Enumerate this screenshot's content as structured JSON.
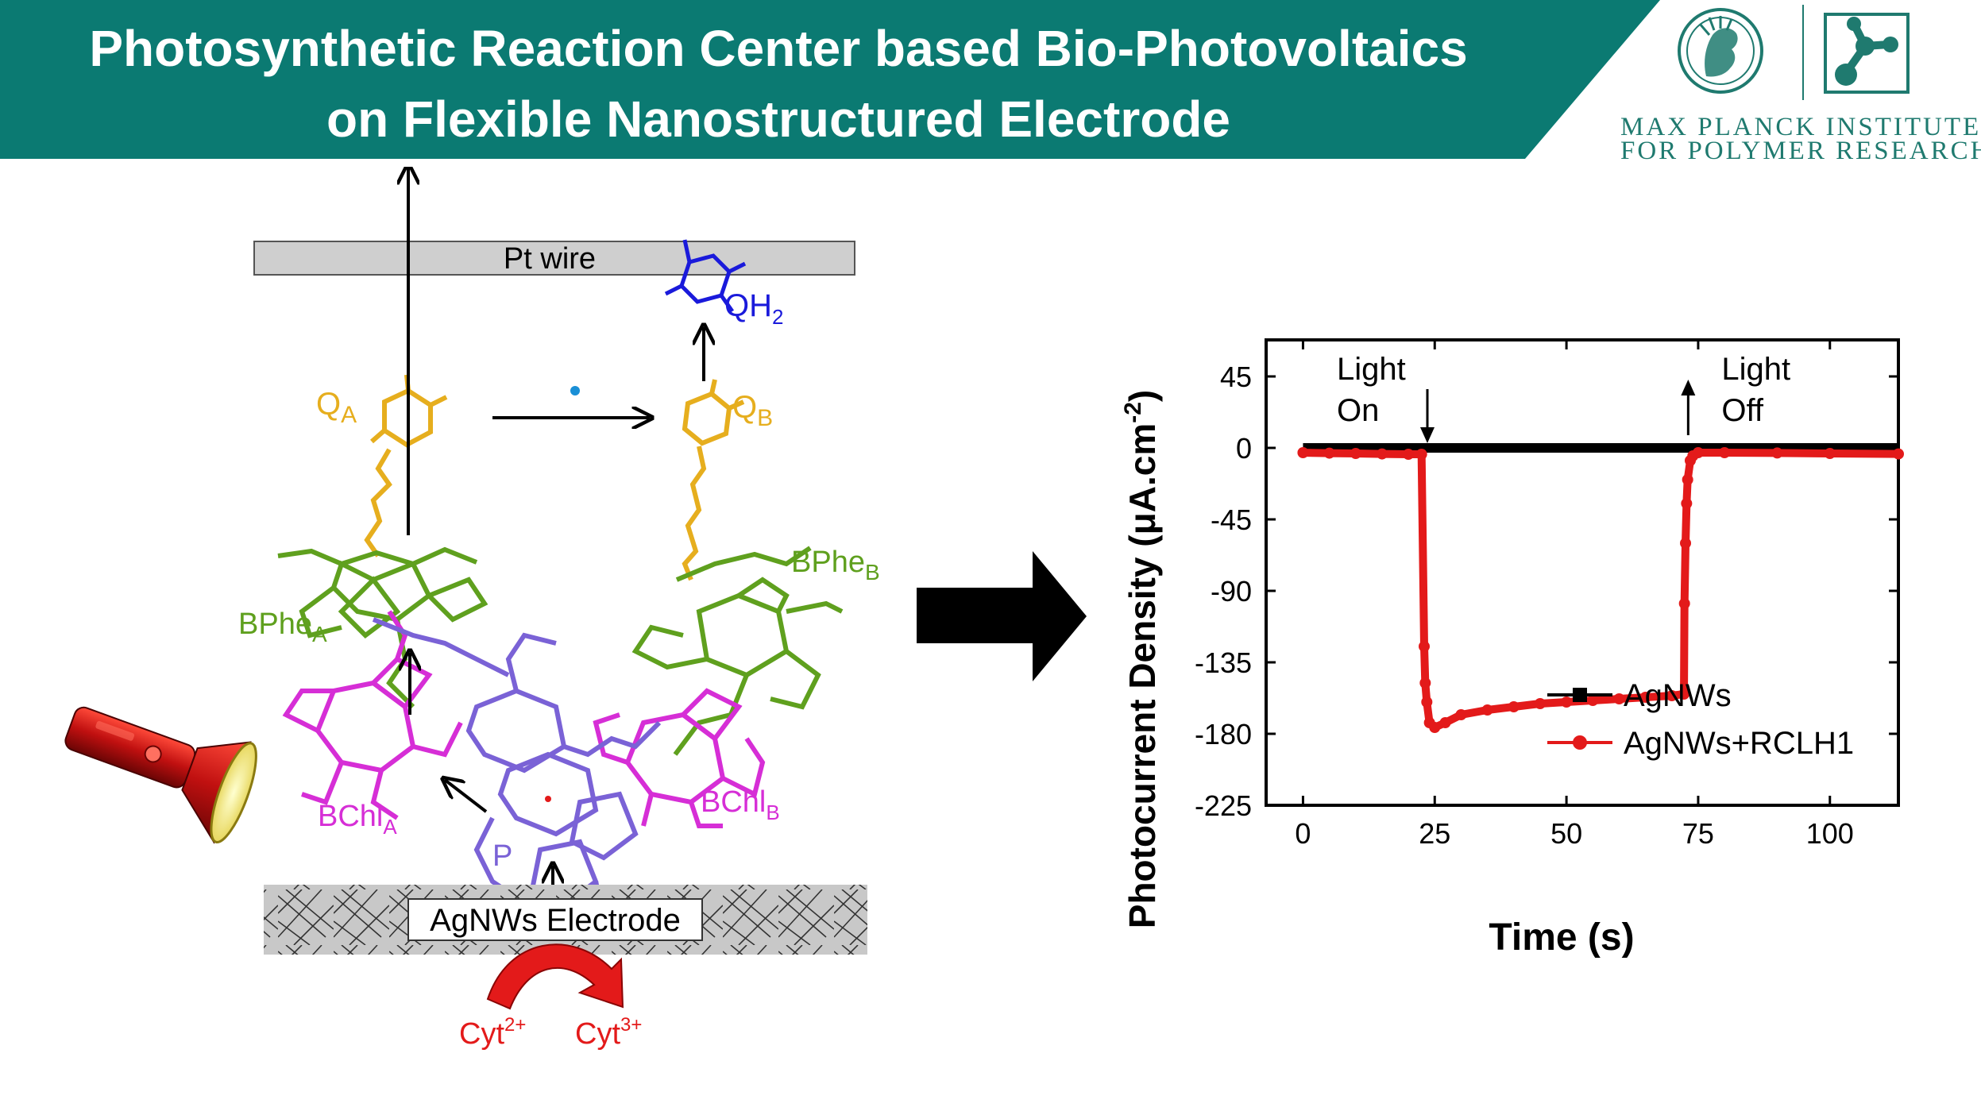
{
  "header": {
    "title_line1": "Photosynthetic Reaction Center based Bio-Photovoltaics",
    "title_line2": "on Flexible Nanostructured Electrode",
    "colors": {
      "banner": "#0b7a72",
      "banner_text": "#ffffff"
    }
  },
  "logo": {
    "line1": "MAX PLANCK INSTITUTE",
    "line2": "FOR POLYMER RESEARCH",
    "icons": [
      "minerva-seal-icon",
      "molecule-logo-icon"
    ]
  },
  "diagram": {
    "pt_wire": "Pt wire",
    "qh2": "QH",
    "qh2_sub": "2",
    "qa": "Q",
    "qa_sub": "A",
    "qb": "Q",
    "qb_sub": "B",
    "bphe_a": "BPhe",
    "bphe_a_sub": "A",
    "bphe_b": "BPhe",
    "bphe_b_sub": "B",
    "bchl_a": "BChl",
    "bchl_a_sub": "A",
    "bchl_b": "BChl",
    "bchl_b_sub": "B",
    "p": "P",
    "electrode": "AgNWs Electrode",
    "cyt_left": "Cyt",
    "cyt_left_sup": "2+",
    "cyt_right": "Cyt",
    "cyt_right_sup": "3+",
    "icons": [
      "flashlight-icon",
      "right-arrow-icon"
    ],
    "colors": {
      "quinone": "#e6ae1e",
      "qh2": "#1a1adb",
      "bphe": "#5fa01e",
      "bchl": "#d62ed6",
      "p": "#7a62d6",
      "cyt": "#e31a1a"
    }
  },
  "chart_data": {
    "type": "line",
    "xlabel": "Time (s)",
    "ylabel": "Photocurrent Density (μA.cm",
    "ylabel_sup": "-2",
    "ylabel_close": ")",
    "xlim": [
      -7,
      113
    ],
    "ylim": [
      -225,
      68
    ],
    "xticks": [
      0,
      25,
      50,
      75,
      100
    ],
    "yticks": [
      45,
      0,
      -45,
      -90,
      -135,
      -180,
      -225
    ],
    "grid": false,
    "legend_position": "bottom-right",
    "annotations": [
      {
        "line1": "Light",
        "line2": "On",
        "x": 23,
        "arrow": "down"
      },
      {
        "line1": "Light",
        "line2": "Off",
        "x": 72.5,
        "arrow": "up"
      }
    ],
    "series": [
      {
        "name": "AgNWs",
        "color": "#000000",
        "marker": "square",
        "x": [
          0,
          113
        ],
        "y": [
          0,
          0
        ]
      },
      {
        "name": "AgNWs+RCLH1",
        "color": "#e31a1a",
        "marker": "circle",
        "x": [
          0,
          5,
          10,
          15,
          20,
          22.5,
          23,
          23.2,
          23.5,
          24,
          25,
          27,
          30,
          35,
          40,
          45,
          50,
          55,
          60,
          65,
          70,
          72.3,
          72.4,
          72.6,
          72.8,
          73,
          73.5,
          74,
          75,
          80,
          90,
          100,
          113
        ],
        "y": [
          -3,
          -3.3,
          -3.5,
          -3.8,
          -4,
          -4,
          -125,
          -148,
          -160,
          -173,
          -176,
          -173,
          -168,
          -165,
          -163,
          -161,
          -160,
          -159,
          -158,
          -157,
          -156,
          -155,
          -98,
          -60,
          -35,
          -20,
          -8,
          -5,
          -3,
          -3,
          -3.2,
          -3.5,
          -3.8
        ]
      }
    ]
  }
}
